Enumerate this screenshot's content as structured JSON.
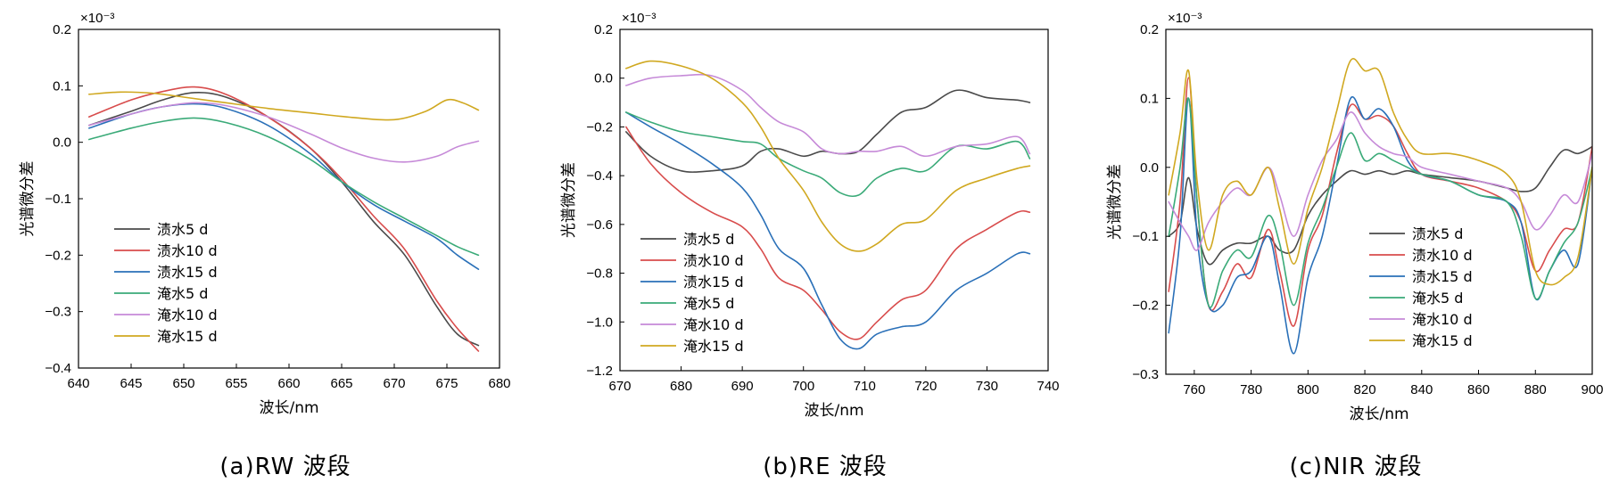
{
  "figure": {
    "series_names": [
      "渍水5 d",
      "渍水10 d",
      "渍水15 d",
      "淹水5 d",
      "淹水10 d",
      "淹水15 d"
    ],
    "colors": [
      "#4a4a4a",
      "#d84c4c",
      "#2a70b8",
      "#3aaa78",
      "#c68ad8",
      "#d0a820"
    ]
  },
  "chart_data": [
    {
      "type": "line",
      "title": "",
      "caption": "(a)RW 波段",
      "xlabel": "波长/nm",
      "ylabel": "光谱微分差",
      "y_multiplier": "×10⁻³",
      "xlim": [
        640,
        680
      ],
      "ylim": [
        -0.4,
        0.2
      ],
      "xticks": [
        640,
        645,
        650,
        655,
        660,
        665,
        670,
        675,
        680
      ],
      "yticks": [
        -0.4,
        -0.3,
        -0.2,
        -0.1,
        0.0,
        0.1,
        0.2
      ],
      "ytick_labels": [
        "−0.4",
        "−0.3",
        "−0.2",
        "−0.1",
        "0.0",
        "0.1",
        "0.2"
      ],
      "legend_placement": "lower-left",
      "grid": false,
      "series": [
        {
          "name": "渍水5 d",
          "x": [
            641,
            645,
            648,
            651,
            654,
            658,
            662,
            665,
            668,
            671,
            674,
            676,
            678
          ],
          "values": [
            0.03,
            0.055,
            0.075,
            0.088,
            0.08,
            0.045,
            -0.01,
            -0.07,
            -0.14,
            -0.2,
            -0.29,
            -0.34,
            -0.36
          ]
        },
        {
          "name": "渍水10 d",
          "x": [
            641,
            645,
            648,
            651,
            654,
            658,
            662,
            665,
            668,
            671,
            674,
            676,
            678
          ],
          "values": [
            0.045,
            0.075,
            0.09,
            0.098,
            0.085,
            0.045,
            -0.01,
            -0.065,
            -0.13,
            -0.19,
            -0.28,
            -0.33,
            -0.37
          ]
        },
        {
          "name": "渍水15 d",
          "x": [
            641,
            645,
            648,
            651,
            654,
            658,
            662,
            665,
            668,
            671,
            674,
            676,
            678
          ],
          "values": [
            0.025,
            0.05,
            0.063,
            0.068,
            0.06,
            0.03,
            -0.02,
            -0.07,
            -0.11,
            -0.14,
            -0.17,
            -0.2,
            -0.225
          ]
        },
        {
          "name": "淹水5 d",
          "x": [
            641,
            645,
            648,
            651,
            654,
            658,
            662,
            665,
            668,
            671,
            674,
            676,
            678
          ],
          "values": [
            0.005,
            0.025,
            0.037,
            0.043,
            0.035,
            0.01,
            -0.03,
            -0.07,
            -0.105,
            -0.135,
            -0.165,
            -0.185,
            -0.2
          ]
        },
        {
          "name": "淹水10 d",
          "x": [
            641,
            645,
            648,
            651,
            654,
            658,
            662,
            665,
            668,
            671,
            674,
            676,
            678
          ],
          "values": [
            0.03,
            0.05,
            0.063,
            0.07,
            0.065,
            0.045,
            0.015,
            -0.01,
            -0.028,
            -0.035,
            -0.025,
            -0.008,
            0.002
          ]
        },
        {
          "name": "淹水15 d",
          "x": [
            641,
            644,
            647,
            650,
            654,
            658,
            662,
            666,
            670,
            673,
            675,
            676.5,
            678
          ],
          "values": [
            0.085,
            0.089,
            0.087,
            0.08,
            0.07,
            0.06,
            0.052,
            0.044,
            0.04,
            0.055,
            0.075,
            0.07,
            0.057
          ]
        }
      ]
    },
    {
      "type": "line",
      "title": "",
      "caption": "(b)RE 波段",
      "xlabel": "波长/nm",
      "ylabel": "光谱微分差",
      "y_multiplier": "×10⁻³",
      "xlim": [
        670,
        740
      ],
      "ylim": [
        -1.2,
        0.2
      ],
      "xticks": [
        670,
        680,
        690,
        700,
        710,
        720,
        730,
        740
      ],
      "yticks": [
        -1.2,
        -1.0,
        -0.8,
        -0.6,
        -0.4,
        -0.2,
        0.0,
        0.2
      ],
      "ytick_labels": [
        "−1.2",
        "−1.0",
        "−0.8",
        "−0.6",
        "−0.4",
        "−0.2",
        "0.0",
        "0.2"
      ],
      "legend_placement": "lower-left",
      "grid": false,
      "series": [
        {
          "name": "渍水5 d",
          "x": [
            671,
            675,
            680,
            685,
            690,
            693,
            696,
            700,
            703,
            706,
            709,
            712,
            716,
            720,
            725,
            730,
            735,
            737
          ],
          "values": [
            -0.22,
            -0.32,
            -0.38,
            -0.38,
            -0.36,
            -0.3,
            -0.29,
            -0.32,
            -0.3,
            -0.31,
            -0.3,
            -0.23,
            -0.14,
            -0.12,
            -0.05,
            -0.08,
            -0.09,
            -0.1
          ]
        },
        {
          "name": "渍水10 d",
          "x": [
            671,
            675,
            680,
            685,
            690,
            693,
            696,
            700,
            703,
            706,
            709,
            712,
            716,
            720,
            725,
            730,
            735,
            737
          ],
          "values": [
            -0.2,
            -0.35,
            -0.47,
            -0.55,
            -0.61,
            -0.7,
            -0.82,
            -0.87,
            -0.95,
            -1.04,
            -1.07,
            -1.0,
            -0.91,
            -0.87,
            -0.7,
            -0.62,
            -0.55,
            -0.55
          ]
        },
        {
          "name": "渍水15 d",
          "x": [
            671,
            675,
            680,
            685,
            690,
            693,
            696,
            700,
            703,
            706,
            709,
            712,
            716,
            720,
            725,
            730,
            735,
            737
          ],
          "values": [
            -0.14,
            -0.2,
            -0.27,
            -0.35,
            -0.45,
            -0.56,
            -0.7,
            -0.78,
            -0.93,
            -1.07,
            -1.11,
            -1.05,
            -1.02,
            -1.0,
            -0.87,
            -0.8,
            -0.72,
            -0.72
          ]
        },
        {
          "name": "淹水5 d",
          "x": [
            671,
            675,
            680,
            685,
            690,
            693,
            696,
            700,
            703,
            706,
            709,
            712,
            716,
            720,
            725,
            730,
            735,
            737
          ],
          "values": [
            -0.14,
            -0.18,
            -0.22,
            -0.24,
            -0.26,
            -0.27,
            -0.33,
            -0.38,
            -0.41,
            -0.47,
            -0.48,
            -0.41,
            -0.37,
            -0.38,
            -0.28,
            -0.29,
            -0.26,
            -0.33
          ]
        },
        {
          "name": "淹水10 d",
          "x": [
            671,
            675,
            680,
            685,
            690,
            693,
            696,
            700,
            703,
            706,
            709,
            712,
            716,
            720,
            725,
            730,
            735,
            737
          ],
          "values": [
            -0.03,
            0.0,
            0.01,
            0.01,
            -0.05,
            -0.12,
            -0.18,
            -0.22,
            -0.29,
            -0.31,
            -0.3,
            -0.3,
            -0.28,
            -0.32,
            -0.28,
            -0.27,
            -0.24,
            -0.31
          ]
        },
        {
          "name": "淹水15 d",
          "x": [
            671,
            675,
            680,
            685,
            690,
            693,
            696,
            700,
            703,
            706,
            709,
            712,
            716,
            720,
            725,
            730,
            735,
            737
          ],
          "values": [
            0.04,
            0.07,
            0.05,
            0.0,
            -0.1,
            -0.2,
            -0.33,
            -0.46,
            -0.59,
            -0.68,
            -0.71,
            -0.68,
            -0.6,
            -0.58,
            -0.46,
            -0.41,
            -0.37,
            -0.36
          ]
        }
      ]
    },
    {
      "type": "line",
      "title": "",
      "caption": "(c)NIR 波段",
      "xlabel": "波长/nm",
      "ylabel": "光谱微分差",
      "y_multiplier": "×10⁻³",
      "xlim": [
        750,
        900
      ],
      "ylim": [
        -0.3,
        0.2
      ],
      "xticks": [
        760,
        780,
        800,
        820,
        840,
        860,
        880,
        900
      ],
      "yticks": [
        -0.3,
        -0.2,
        -0.1,
        0.0,
        0.1,
        0.2
      ],
      "ytick_labels": [
        "−0.3",
        "−0.2",
        "−0.1",
        "0.0",
        "0.1",
        "0.2"
      ],
      "legend_placement": "lower-center",
      "grid": false,
      "series": [
        {
          "name": "渍水5 d",
          "x": [
            751,
            755,
            758,
            761,
            765,
            770,
            775,
            780,
            786,
            790,
            795,
            800,
            805,
            810,
            815,
            820,
            825,
            830,
            835,
            840,
            850,
            860,
            870,
            875,
            880,
            885,
            890,
            895,
            900
          ],
          "values": [
            -0.1,
            -0.08,
            -0.015,
            -0.09,
            -0.14,
            -0.12,
            -0.11,
            -0.11,
            -0.1,
            -0.12,
            -0.12,
            -0.07,
            -0.04,
            -0.02,
            -0.005,
            -0.01,
            -0.005,
            -0.01,
            -0.005,
            -0.01,
            -0.015,
            -0.02,
            -0.03,
            -0.035,
            -0.03,
            0.0,
            0.025,
            0.02,
            0.03
          ]
        },
        {
          "name": "渍水10 d",
          "x": [
            751,
            755,
            758,
            761,
            765,
            770,
            775,
            780,
            786,
            790,
            795,
            800,
            805,
            810,
            815,
            820,
            825,
            830,
            835,
            840,
            850,
            860,
            870,
            875,
            880,
            885,
            890,
            895,
            900
          ],
          "values": [
            -0.18,
            -0.05,
            0.13,
            -0.05,
            -0.2,
            -0.18,
            -0.14,
            -0.16,
            -0.09,
            -0.15,
            -0.23,
            -0.12,
            -0.07,
            0.02,
            0.09,
            0.07,
            0.075,
            0.06,
            0.02,
            -0.01,
            -0.02,
            -0.03,
            -0.05,
            -0.08,
            -0.15,
            -0.12,
            -0.09,
            -0.08,
            0.03
          ]
        },
        {
          "name": "渍水15 d",
          "x": [
            751,
            755,
            758,
            761,
            765,
            770,
            775,
            780,
            786,
            790,
            795,
            800,
            805,
            810,
            815,
            820,
            825,
            830,
            835,
            840,
            850,
            860,
            870,
            875,
            880,
            885,
            890,
            895,
            900
          ],
          "values": [
            -0.24,
            -0.1,
            0.1,
            -0.1,
            -0.2,
            -0.2,
            -0.16,
            -0.15,
            -0.1,
            -0.17,
            -0.27,
            -0.16,
            -0.1,
            0.0,
            0.1,
            0.07,
            0.085,
            0.06,
            0.01,
            -0.01,
            -0.02,
            -0.04,
            -0.05,
            -0.08,
            -0.19,
            -0.15,
            -0.12,
            -0.14,
            0.0
          ]
        },
        {
          "name": "淹水5 d",
          "x": [
            751,
            755,
            758,
            761,
            765,
            770,
            775,
            780,
            786,
            790,
            795,
            800,
            805,
            810,
            815,
            820,
            825,
            830,
            835,
            840,
            850,
            860,
            870,
            875,
            880,
            885,
            890,
            895,
            900
          ],
          "values": [
            -0.1,
            0.0,
            0.1,
            -0.05,
            -0.2,
            -0.15,
            -0.12,
            -0.13,
            -0.07,
            -0.11,
            -0.2,
            -0.11,
            -0.06,
            0.0,
            0.05,
            0.01,
            0.02,
            0.01,
            0.0,
            -0.01,
            -0.02,
            -0.04,
            -0.05,
            -0.1,
            -0.19,
            -0.15,
            -0.11,
            -0.08,
            0.0
          ]
        },
        {
          "name": "淹水10 d",
          "x": [
            751,
            755,
            758,
            761,
            765,
            770,
            775,
            780,
            786,
            790,
            795,
            800,
            805,
            810,
            815,
            820,
            825,
            830,
            835,
            840,
            850,
            860,
            870,
            875,
            880,
            885,
            890,
            895,
            900
          ],
          "values": [
            -0.05,
            -0.08,
            -0.1,
            -0.12,
            -0.08,
            -0.05,
            -0.03,
            -0.04,
            0.0,
            -0.04,
            -0.1,
            -0.04,
            0.01,
            0.04,
            0.08,
            0.05,
            0.03,
            0.02,
            0.015,
            0.0,
            -0.01,
            -0.02,
            -0.03,
            -0.05,
            -0.09,
            -0.07,
            -0.04,
            -0.05,
            0.02
          ]
        },
        {
          "name": "淹水15 d",
          "x": [
            751,
            755,
            758,
            761,
            765,
            770,
            775,
            780,
            786,
            790,
            795,
            800,
            805,
            810,
            815,
            820,
            825,
            830,
            835,
            840,
            850,
            860,
            870,
            875,
            880,
            885,
            890,
            895,
            900
          ],
          "values": [
            -0.04,
            0.05,
            0.14,
            -0.02,
            -0.12,
            -0.04,
            -0.02,
            -0.04,
            0.0,
            -0.06,
            -0.14,
            -0.06,
            0.0,
            0.08,
            0.155,
            0.14,
            0.14,
            0.08,
            0.04,
            0.02,
            0.02,
            0.01,
            -0.01,
            -0.05,
            -0.15,
            -0.17,
            -0.16,
            -0.13,
            0.0
          ]
        }
      ]
    }
  ]
}
